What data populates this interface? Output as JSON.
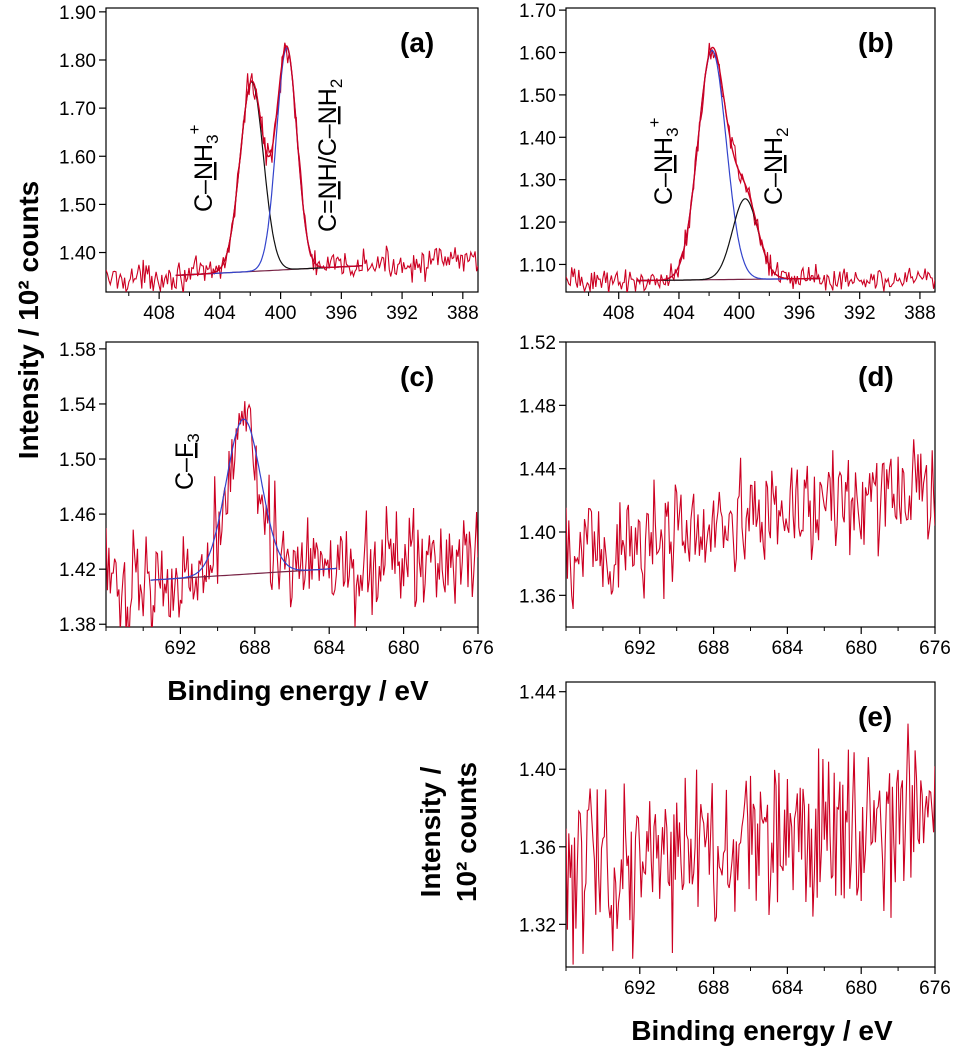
{
  "figure": {
    "ylabel_main": "Intensity / 10² counts",
    "xlabel_c": "Binding energy / eV",
    "xlabel_e": "Binding energy / eV",
    "ylabel_e": [
      "Intensity /",
      "10² counts"
    ]
  },
  "colors": {
    "data": "#cc0022",
    "fit_blue": "#3344cc",
    "fit_black": "#111111",
    "baseline": "#772244"
  },
  "chart_data": [
    {
      "panel": "(a)",
      "type": "line",
      "xlim": [
        411.5,
        387
      ],
      "ylim": [
        1.318,
        1.908
      ],
      "xticks": [
        "408",
        "404",
        "400",
        "396",
        "392",
        "388"
      ],
      "yticks": [
        "1.40",
        "1.50",
        "1.60",
        "1.70",
        "1.80",
        "1.90"
      ],
      "annotations": [
        "C–NH₃⁺",
        "C=NH/C–NH₂"
      ],
      "baseline": 1.345,
      "baseline_end": 1.385,
      "peaks": [
        {
          "center": 401.9,
          "height": 1.755,
          "fwhm": 1.8,
          "color": "black"
        },
        {
          "center": 399.6,
          "height": 1.825,
          "fwhm": 1.6,
          "color": "blue"
        }
      ],
      "noise": 0.025
    },
    {
      "panel": "(b)",
      "type": "line",
      "xlim": [
        411.5,
        387
      ],
      "ylim": [
        1.035,
        1.705
      ],
      "xticks": [
        "408",
        "404",
        "400",
        "396",
        "392",
        "388"
      ],
      "yticks": [
        "1.10",
        "1.20",
        "1.30",
        "1.40",
        "1.50",
        "1.60",
        "1.70"
      ],
      "annotations": [
        "C–NH₃⁺",
        "C–NH₂"
      ],
      "baseline": 1.06,
      "baseline_end": 1.07,
      "peaks": [
        {
          "center": 401.8,
          "height": 1.605,
          "fwhm": 2.2,
          "color": "blue"
        },
        {
          "center": 399.6,
          "height": 1.255,
          "fwhm": 2.0,
          "color": "black"
        }
      ],
      "noise": 0.025
    },
    {
      "panel": "(c)",
      "type": "line",
      "xlim": [
        696,
        676
      ],
      "ylim": [
        1.378,
        1.585
      ],
      "xticks": [
        "692",
        "688",
        "684",
        "680",
        "676"
      ],
      "yticks": [
        "1.38",
        "1.42",
        "1.46",
        "1.50",
        "1.54",
        "1.58"
      ],
      "annotations": [
        "C–F₃"
      ],
      "baseline": 1.41,
      "baseline_end": 1.427,
      "peaks": [
        {
          "center": 688.6,
          "height": 1.529,
          "fwhm": 2.2,
          "color": "blue"
        }
      ],
      "noise": 0.03
    },
    {
      "panel": "(d)",
      "type": "line",
      "xlim": [
        696,
        676
      ],
      "ylim": [
        1.34,
        1.52
      ],
      "xticks": [
        "692",
        "688",
        "684",
        "680",
        "676"
      ],
      "yticks": [
        "1.36",
        "1.40",
        "1.44",
        "1.48",
        "1.52"
      ],
      "annotations": [],
      "baseline": 1.385,
      "baseline_end": 1.43,
      "peaks": [],
      "noise": 0.03
    },
    {
      "panel": "(e)",
      "type": "line",
      "xlim": [
        696,
        676
      ],
      "ylim": [
        1.298,
        1.445
      ],
      "xticks": [
        "692",
        "688",
        "684",
        "680",
        "676"
      ],
      "yticks": [
        "1.32",
        "1.36",
        "1.40",
        "1.44"
      ],
      "annotations": [],
      "baseline": 1.345,
      "baseline_end": 1.38,
      "peaks": [],
      "noise": 0.035
    }
  ]
}
